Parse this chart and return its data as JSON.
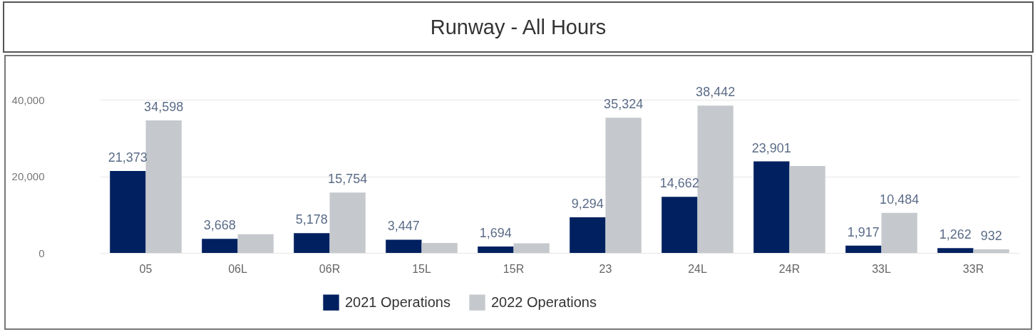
{
  "chart_data": {
    "type": "bar",
    "title": "Runway - All Hours",
    "categories": [
      "05",
      "06L",
      "06R",
      "15L",
      "15R",
      "23",
      "24L",
      "24R",
      "33L",
      "33R"
    ],
    "series": [
      {
        "name": "2021 Operations",
        "color": "#002060",
        "values": [
          21373,
          3668,
          5178,
          3447,
          1694,
          9294,
          14662,
          23901,
          1917,
          1262
        ],
        "value_labels": [
          "21,373",
          "3,668",
          "5,178",
          "3,447",
          "1,694",
          "9,294",
          "14,662",
          "23,901",
          "1,917",
          "1,262"
        ]
      },
      {
        "name": "2022 Operations",
        "color": "#c5c9cd",
        "values": [
          34598,
          4900,
          15754,
          2600,
          2500,
          35324,
          38442,
          22700,
          10484,
          932
        ],
        "value_labels": [
          "34,598",
          null,
          "15,754",
          null,
          null,
          "35,324",
          "38,442",
          null,
          "10,484",
          "932"
        ]
      }
    ],
    "ylim": [
      0,
      40000
    ],
    "yticks": [
      {
        "value": 0,
        "label": "0"
      },
      {
        "value": 20000,
        "label": "20,000"
      },
      {
        "value": 40000,
        "label": "40,000"
      }
    ],
    "grid": "y",
    "legend": "bottom"
  }
}
